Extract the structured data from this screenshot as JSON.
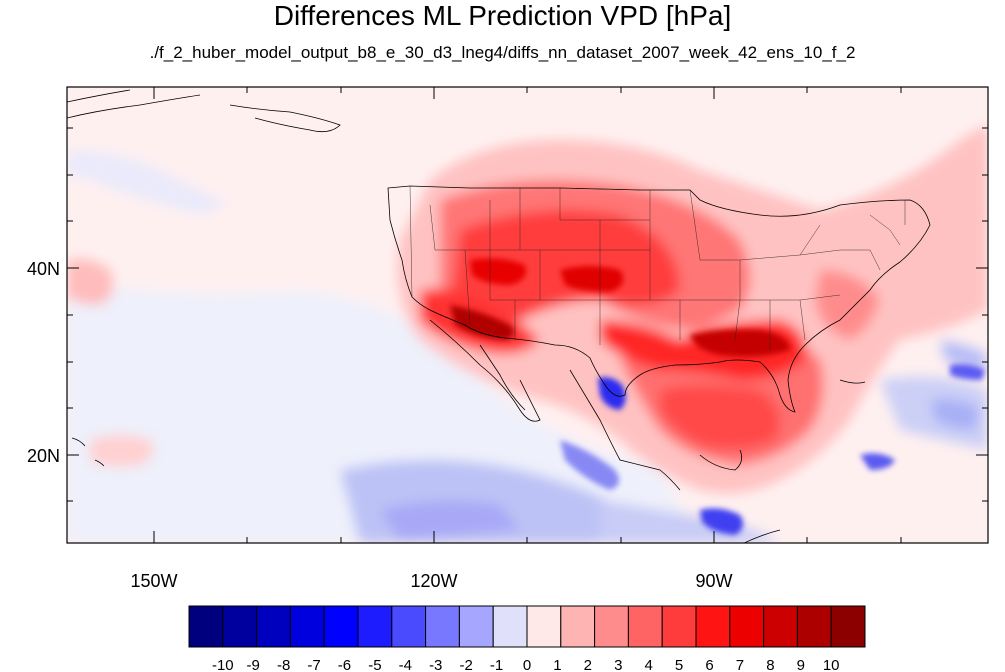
{
  "title": "Differences ML Prediction VPD [hPa]",
  "subtitle": "./f_2_huber_model_output_b8_e_30_d3_lneg4/diffs_nn_dataset_2007_week_42_ens_10_f_2",
  "chart_data": {
    "type": "heatmap",
    "variable": "VPD",
    "units": "hPa",
    "x_ticks": [
      {
        "value": -150,
        "label": "150W"
      },
      {
        "value": -120,
        "label": "120W"
      },
      {
        "value": -90,
        "label": "90W"
      }
    ],
    "y_ticks": [
      {
        "value": 40,
        "label": "40N"
      },
      {
        "value": 20,
        "label": "20N"
      }
    ],
    "colorbar": {
      "labels": [
        "-10",
        "-9",
        "-8",
        "-7",
        "-6",
        "-5",
        "-4",
        "-3",
        "-2",
        "-1",
        "0",
        "1",
        "2",
        "3",
        "4",
        "5",
        "6",
        "7",
        "8",
        "9",
        "10"
      ],
      "colors": [
        "#00007f",
        "#00009f",
        "#0000bf",
        "#0000df",
        "#0000ff",
        "#1c1cff",
        "#4a4aff",
        "#7878ff",
        "#a6a6ff",
        "#e0e0fa",
        "#ffe8e8",
        "#ffb4b4",
        "#ff8c8c",
        "#ff6464",
        "#ff3c3c",
        "#ff1414",
        "#ec0000",
        "#cc0000",
        "#ac0000",
        "#8c0000"
      ]
    }
  }
}
